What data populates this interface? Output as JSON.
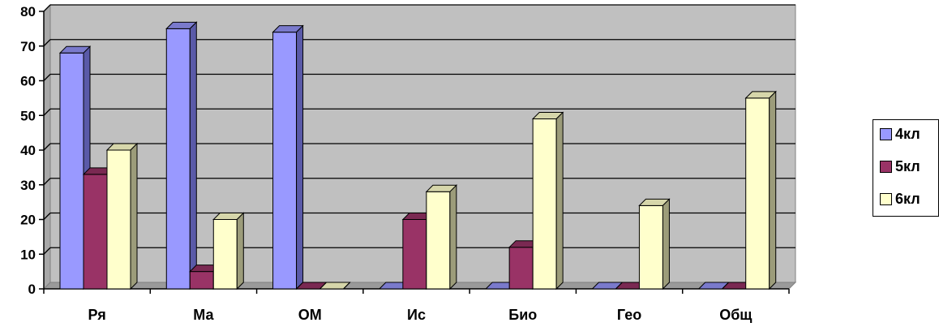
{
  "chart_data": {
    "type": "bar",
    "categories": [
      "Ря",
      "Ма",
      "ОМ",
      "Ис",
      "Био",
      "Гео",
      "Общ"
    ],
    "series": [
      {
        "name": "4кл",
        "values": [
          68,
          75,
          74,
          0,
          0,
          0,
          0
        ],
        "color": "#9999ff",
        "side": "#5a5aa8",
        "top": "#7a7acc"
      },
      {
        "name": "5кл",
        "values": [
          33,
          5,
          0,
          20,
          12,
          0,
          0
        ],
        "color": "#993366",
        "side": "#5e1f3f",
        "top": "#7a2952"
      },
      {
        "name": "6кл",
        "values": [
          40,
          20,
          0,
          28,
          49,
          24,
          55
        ],
        "color": "#ffffcc",
        "side": "#9c9c7a",
        "top": "#d6d6aa"
      }
    ],
    "ylim": [
      0,
      80
    ],
    "yticks": [
      "0",
      "10",
      "20",
      "30",
      "40",
      "50",
      "60",
      "70",
      "80"
    ],
    "grid": true,
    "legend_position": "right",
    "plot_background": "#c0c0c0"
  }
}
